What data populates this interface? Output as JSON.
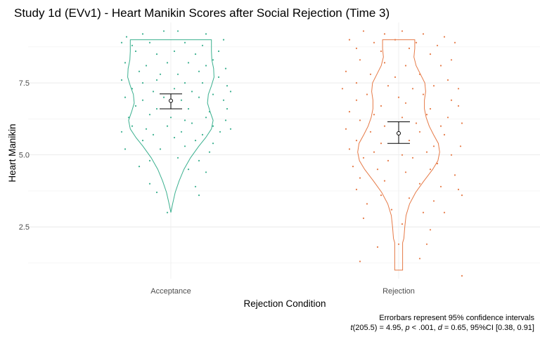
{
  "chart_data": {
    "type": "violin",
    "title": "Study 1d (EVv1) - Heart Manikin Scores after Social Rejection (Time 3)",
    "xlabel": "Rejection Condition",
    "ylabel": "Heart Manikin",
    "ylim": [
      0.7,
      9.6
    ],
    "yticks": [
      "2.5",
      "5.0",
      "7.5"
    ],
    "grid": true,
    "caption_line1": "Errorbars represent 95% confidence intervals",
    "caption_line2": {
      "t": "t",
      "df": "(205.5) = 4.95, ",
      "p": "p",
      "p_val": " < .001, ",
      "d": "d",
      "d_val": " = 0.65, 95%CI [0.38, 0.91]"
    },
    "categories": [
      "Acceptance",
      "Rejection"
    ],
    "groups": [
      {
        "label": "Acceptance",
        "color": "#3bb08f",
        "mean": 6.88,
        "ci": [
          6.6,
          7.12
        ],
        "violin": [
          [
            3.0,
            0.0
          ],
          [
            3.3,
            0.04
          ],
          [
            3.7,
            0.1
          ],
          [
            4.1,
            0.19
          ],
          [
            4.5,
            0.3
          ],
          [
            4.9,
            0.45
          ],
          [
            5.3,
            0.64
          ],
          [
            5.6,
            0.8
          ],
          [
            5.9,
            0.93
          ],
          [
            6.2,
            0.97
          ],
          [
            6.5,
            0.9
          ],
          [
            6.8,
            0.84
          ],
          [
            7.1,
            0.86
          ],
          [
            7.4,
            0.93
          ],
          [
            7.7,
            0.99
          ],
          [
            8.0,
            0.98
          ],
          [
            8.3,
            0.94
          ],
          [
            8.6,
            0.93
          ],
          [
            9.0,
            0.93
          ]
        ],
        "points": [
          [
            -0.63,
            9.1
          ],
          [
            -0.4,
            9.2
          ],
          [
            -0.1,
            9.3
          ],
          [
            0.1,
            9.3
          ],
          [
            0.5,
            9.2
          ],
          [
            0.75,
            9.0
          ],
          [
            -0.7,
            8.9
          ],
          [
            -0.55,
            8.8
          ],
          [
            -0.3,
            8.9
          ],
          [
            0.2,
            8.9
          ],
          [
            0.45,
            8.8
          ],
          [
            0.68,
            8.6
          ],
          [
            -0.5,
            8.6
          ],
          [
            -0.2,
            8.5
          ],
          [
            0.05,
            8.6
          ],
          [
            0.35,
            8.5
          ],
          [
            0.6,
            8.3
          ],
          [
            -0.65,
            8.2
          ],
          [
            -0.35,
            8.1
          ],
          [
            -0.05,
            8.2
          ],
          [
            0.25,
            8.2
          ],
          [
            0.5,
            8.1
          ],
          [
            0.78,
            8.0
          ],
          [
            -0.45,
            7.9
          ],
          [
            -0.15,
            7.8
          ],
          [
            0.1,
            7.8
          ],
          [
            0.4,
            7.9
          ],
          [
            0.68,
            7.7
          ],
          [
            -0.7,
            7.6
          ],
          [
            -0.4,
            7.5
          ],
          [
            -0.2,
            7.6
          ],
          [
            0.2,
            7.5
          ],
          [
            0.45,
            7.5
          ],
          [
            0.8,
            7.4
          ],
          [
            -0.55,
            7.3
          ],
          [
            -0.25,
            7.2
          ],
          [
            0.05,
            7.3
          ],
          [
            0.3,
            7.2
          ],
          [
            0.6,
            7.1
          ],
          [
            0.85,
            7.2
          ],
          [
            -0.65,
            7.0
          ],
          [
            -0.4,
            6.9
          ],
          [
            -0.1,
            7.0
          ],
          [
            0.15,
            6.9
          ],
          [
            0.4,
            7.0
          ],
          [
            0.75,
            6.9
          ],
          [
            -0.5,
            6.7
          ],
          [
            -0.2,
            6.6
          ],
          [
            0.25,
            6.6
          ],
          [
            0.55,
            6.5
          ],
          [
            0.8,
            6.6
          ],
          [
            -0.6,
            6.3
          ],
          [
            -0.3,
            6.4
          ],
          [
            0.0,
            6.3
          ],
          [
            0.2,
            6.2
          ],
          [
            0.5,
            6.3
          ],
          [
            0.78,
            6.2
          ],
          [
            -0.55,
            6.0
          ],
          [
            -0.35,
            5.9
          ],
          [
            -0.05,
            6.0
          ],
          [
            0.3,
            6.1
          ],
          [
            0.6,
            6.0
          ],
          [
            0.85,
            5.9
          ],
          [
            -0.7,
            5.8
          ],
          [
            -0.25,
            5.7
          ],
          [
            0.15,
            5.8
          ],
          [
            0.45,
            5.7
          ],
          [
            0.7,
            5.8
          ],
          [
            -0.4,
            5.5
          ],
          [
            0.05,
            5.6
          ],
          [
            0.35,
            5.5
          ],
          [
            0.6,
            5.4
          ],
          [
            -0.65,
            5.2
          ],
          [
            -0.15,
            5.2
          ],
          [
            0.2,
            5.3
          ],
          [
            0.55,
            5.1
          ],
          [
            -0.3,
            4.8
          ],
          [
            0.1,
            4.9
          ],
          [
            0.4,
            4.8
          ],
          [
            -0.45,
            4.6
          ],
          [
            0.25,
            4.5
          ],
          [
            0.5,
            4.4
          ],
          [
            -0.3,
            4.0
          ],
          [
            0.35,
            3.9
          ],
          [
            -0.2,
            3.7
          ],
          [
            0.4,
            3.6
          ],
          [
            -0.05,
            3.0
          ]
        ]
      },
      {
        "label": "Rejection",
        "color": "#e67a47",
        "mean": 5.75,
        "ci": [
          5.4,
          6.15
        ],
        "violin": [
          [
            1.0,
            0.09
          ],
          [
            1.3,
            0.09
          ],
          [
            1.6,
            0.09
          ],
          [
            1.95,
            0.09
          ],
          [
            2.1,
            0.12
          ],
          [
            2.5,
            0.14
          ],
          [
            2.9,
            0.17
          ],
          [
            3.3,
            0.25
          ],
          [
            3.7,
            0.39
          ],
          [
            4.1,
            0.58
          ],
          [
            4.5,
            0.78
          ],
          [
            4.8,
            0.9
          ],
          [
            5.1,
            0.94
          ],
          [
            5.4,
            0.91
          ],
          [
            5.7,
            0.8
          ],
          [
            6.0,
            0.7
          ],
          [
            6.3,
            0.63
          ],
          [
            6.6,
            0.59
          ],
          [
            6.9,
            0.59
          ],
          [
            7.2,
            0.62
          ],
          [
            7.5,
            0.6
          ],
          [
            7.8,
            0.5
          ],
          [
            8.1,
            0.4
          ],
          [
            8.4,
            0.35
          ],
          [
            8.7,
            0.37
          ],
          [
            9.0,
            0.37
          ]
        ],
        "points": [
          [
            -0.5,
            9.3
          ],
          [
            -0.2,
            9.2
          ],
          [
            0.05,
            9.3
          ],
          [
            0.35,
            9.2
          ],
          [
            0.65,
            9.1
          ],
          [
            -0.7,
            9.0
          ],
          [
            -0.35,
            8.9
          ],
          [
            -0.05,
            9.0
          ],
          [
            0.25,
            8.9
          ],
          [
            0.55,
            8.8
          ],
          [
            0.8,
            8.9
          ],
          [
            -0.6,
            8.7
          ],
          [
            -0.25,
            8.6
          ],
          [
            0.15,
            8.7
          ],
          [
            0.45,
            8.5
          ],
          [
            0.75,
            8.3
          ],
          [
            -0.55,
            8.3
          ],
          [
            -0.2,
            8.2
          ],
          [
            0.1,
            8.1
          ],
          [
            0.6,
            8.1
          ],
          [
            -0.75,
            7.9
          ],
          [
            -0.4,
            7.8
          ],
          [
            -0.05,
            7.7
          ],
          [
            0.3,
            7.8
          ],
          [
            0.7,
            7.6
          ],
          [
            -0.6,
            7.5
          ],
          [
            -0.15,
            7.4
          ],
          [
            0.2,
            7.3
          ],
          [
            0.5,
            7.4
          ],
          [
            0.85,
            7.3
          ],
          [
            -0.8,
            7.3
          ],
          [
            -0.45,
            7.1
          ],
          [
            0.0,
            7.0
          ],
          [
            0.35,
            7.1
          ],
          [
            0.75,
            6.9
          ],
          [
            -0.6,
            6.9
          ],
          [
            -0.25,
            6.7
          ],
          [
            0.1,
            6.8
          ],
          [
            0.45,
            6.6
          ],
          [
            0.85,
            6.7
          ],
          [
            -0.7,
            6.5
          ],
          [
            -0.35,
            6.4
          ],
          [
            0.05,
            6.3
          ],
          [
            0.4,
            6.4
          ],
          [
            0.7,
            6.3
          ],
          [
            -0.55,
            6.2
          ],
          [
            -0.2,
            6.0
          ],
          [
            0.25,
            6.1
          ],
          [
            0.6,
            6.0
          ],
          [
            0.9,
            6.1
          ],
          [
            -0.75,
            5.9
          ],
          [
            -0.4,
            5.8
          ],
          [
            0.0,
            5.7
          ],
          [
            0.3,
            5.8
          ],
          [
            0.65,
            5.7
          ],
          [
            -0.6,
            5.5
          ],
          [
            -0.25,
            5.4
          ],
          [
            0.15,
            5.5
          ],
          [
            0.5,
            5.3
          ],
          [
            0.88,
            5.3
          ],
          [
            -0.7,
            5.2
          ],
          [
            -0.35,
            5.1
          ],
          [
            0.05,
            5.0
          ],
          [
            0.4,
            5.1
          ],
          [
            0.75,
            5.0
          ],
          [
            -0.5,
            4.9
          ],
          [
            -0.15,
            4.8
          ],
          [
            0.2,
            4.9
          ],
          [
            0.55,
            4.7
          ],
          [
            -0.65,
            4.6
          ],
          [
            -0.3,
            4.5
          ],
          [
            0.1,
            4.4
          ],
          [
            0.45,
            4.5
          ],
          [
            0.8,
            4.3
          ],
          [
            -0.55,
            4.2
          ],
          [
            -0.2,
            4.1
          ],
          [
            0.3,
            4.0
          ],
          [
            0.6,
            3.9
          ],
          [
            0.85,
            3.8
          ],
          [
            -0.6,
            3.8
          ],
          [
            -0.25,
            3.6
          ],
          [
            0.15,
            3.5
          ],
          [
            0.5,
            3.4
          ],
          [
            0.9,
            3.6
          ],
          [
            -0.45,
            3.3
          ],
          [
            -0.1,
            3.1
          ],
          [
            0.35,
            3.0
          ],
          [
            0.65,
            3.0
          ],
          [
            -0.5,
            2.8
          ],
          [
            0.05,
            2.6
          ],
          [
            0.45,
            2.4
          ],
          [
            -0.3,
            1.8
          ],
          [
            0.0,
            1.9
          ],
          [
            0.4,
            1.9
          ],
          [
            -0.55,
            1.3
          ],
          [
            0.3,
            1.4
          ],
          [
            0.9,
            0.8
          ]
        ]
      }
    ]
  }
}
